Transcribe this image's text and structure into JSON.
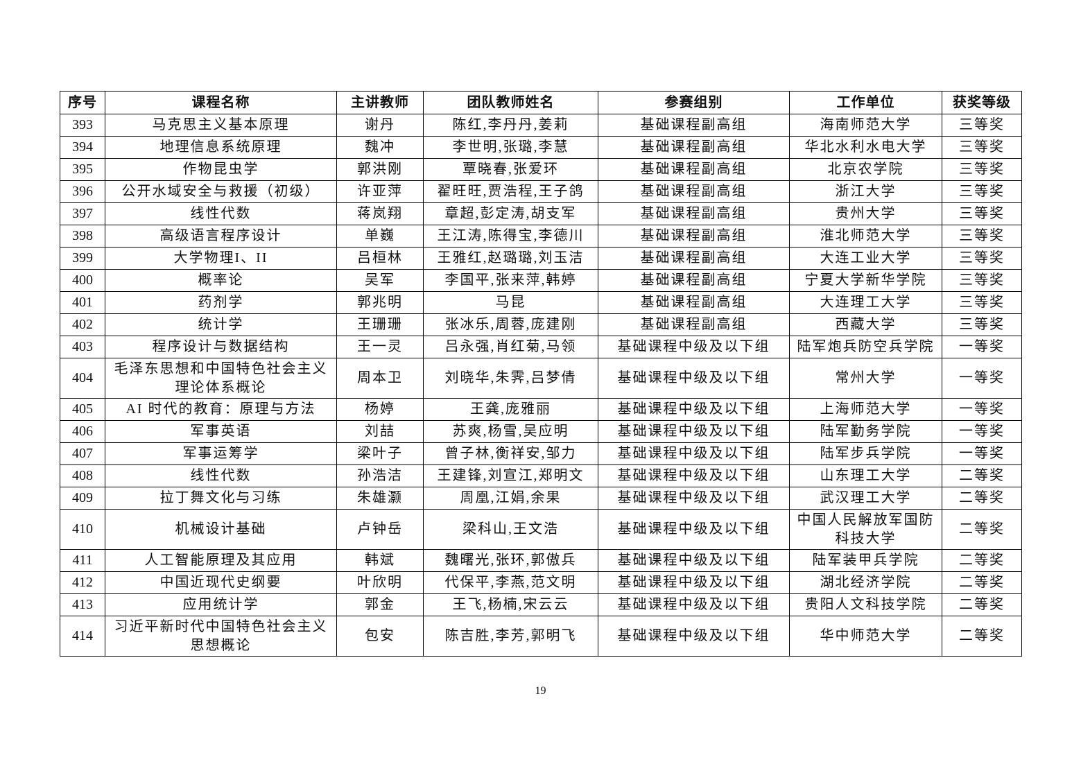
{
  "table": {
    "headers": [
      "序号",
      "课程名称",
      "主讲教师",
      "团队教师姓名",
      "参赛组别",
      "工作单位",
      "获奖等级"
    ],
    "rows": [
      [
        "393",
        "马克思主义基本原理",
        "谢丹",
        "陈红,李丹丹,姜莉",
        "基础课程副高组",
        "海南师范大学",
        "三等奖"
      ],
      [
        "394",
        "地理信息系统原理",
        "魏冲",
        "李世明,张璐,李慧",
        "基础课程副高组",
        "华北水利水电大学",
        "三等奖"
      ],
      [
        "395",
        "作物昆虫学",
        "郭洪刚",
        "覃晓春,张爱环",
        "基础课程副高组",
        "北京农学院",
        "三等奖"
      ],
      [
        "396",
        "公开水域安全与救援（初级）",
        "许亚萍",
        "翟旺旺,贾浩程,王子鸽",
        "基础课程副高组",
        "浙江大学",
        "三等奖"
      ],
      [
        "397",
        "线性代数",
        "蒋岚翔",
        "章超,彭定涛,胡支军",
        "基础课程副高组",
        "贵州大学",
        "三等奖"
      ],
      [
        "398",
        "高级语言程序设计",
        "单巍",
        "王江涛,陈得宝,李德川",
        "基础课程副高组",
        "淮北师范大学",
        "三等奖"
      ],
      [
        "399",
        "大学物理I、II",
        "吕桓林",
        "王雅红,赵璐璐,刘玉洁",
        "基础课程副高组",
        "大连工业大学",
        "三等奖"
      ],
      [
        "400",
        "概率论",
        "吴军",
        "李国平,张来萍,韩婷",
        "基础课程副高组",
        "宁夏大学新华学院",
        "三等奖"
      ],
      [
        "401",
        "药剂学",
        "郭兆明",
        "马昆",
        "基础课程副高组",
        "大连理工大学",
        "三等奖"
      ],
      [
        "402",
        "统计学",
        "王珊珊",
        "张冰乐,周蓉,庞建刚",
        "基础课程副高组",
        "西藏大学",
        "三等奖"
      ],
      [
        "403",
        "程序设计与数据结构",
        "王一灵",
        "吕永强,肖红菊,马领",
        "基础课程中级及以下组",
        "陆军炮兵防空兵学院",
        "一等奖"
      ],
      [
        "404",
        "毛泽东思想和中国特色社会主义\n理论体系概论",
        "周本卫",
        "刘晓华,朱霁,吕梦倩",
        "基础课程中级及以下组",
        "常州大学",
        "一等奖"
      ],
      [
        "405",
        "AI 时代的教育：原理与方法",
        "杨婷",
        "王龚,庞雅丽",
        "基础课程中级及以下组",
        "上海师范大学",
        "一等奖"
      ],
      [
        "406",
        "军事英语",
        "刘喆",
        "苏爽,杨雪,吴应明",
        "基础课程中级及以下组",
        "陆军勤务学院",
        "一等奖"
      ],
      [
        "407",
        "军事运筹学",
        "梁叶子",
        "曾子林,衡祥安,邹力",
        "基础课程中级及以下组",
        "陆军步兵学院",
        "一等奖"
      ],
      [
        "408",
        "线性代数",
        "孙浩洁",
        "王建锋,刘宣江,郑明文",
        "基础课程中级及以下组",
        "山东理工大学",
        "二等奖"
      ],
      [
        "409",
        "拉丁舞文化与习练",
        "朱雄灏",
        "周凰,江娟,余果",
        "基础课程中级及以下组",
        "武汉理工大学",
        "二等奖"
      ],
      [
        "410",
        "机械设计基础",
        "卢钟岳",
        "梁科山,王文浩",
        "基础课程中级及以下组",
        "中国人民解放军国防\n科技大学",
        "二等奖"
      ],
      [
        "411",
        "人工智能原理及其应用",
        "韩斌",
        "魏曙光,张环,郭傲兵",
        "基础课程中级及以下组",
        "陆军装甲兵学院",
        "二等奖"
      ],
      [
        "412",
        "中国近现代史纲要",
        "叶欣明",
        "代保平,李燕,范文明",
        "基础课程中级及以下组",
        "湖北经济学院",
        "二等奖"
      ],
      [
        "413",
        "应用统计学",
        "郭金",
        "王飞,杨楠,宋云云",
        "基础课程中级及以下组",
        "贵阳人文科技学院",
        "二等奖"
      ],
      [
        "414",
        "习近平新时代中国特色社会主义\n思想概论",
        "包安",
        "陈吉胜,李芳,郭明飞",
        "基础课程中级及以下组",
        "华中师范大学",
        "二等奖"
      ]
    ]
  },
  "page_number": "19"
}
